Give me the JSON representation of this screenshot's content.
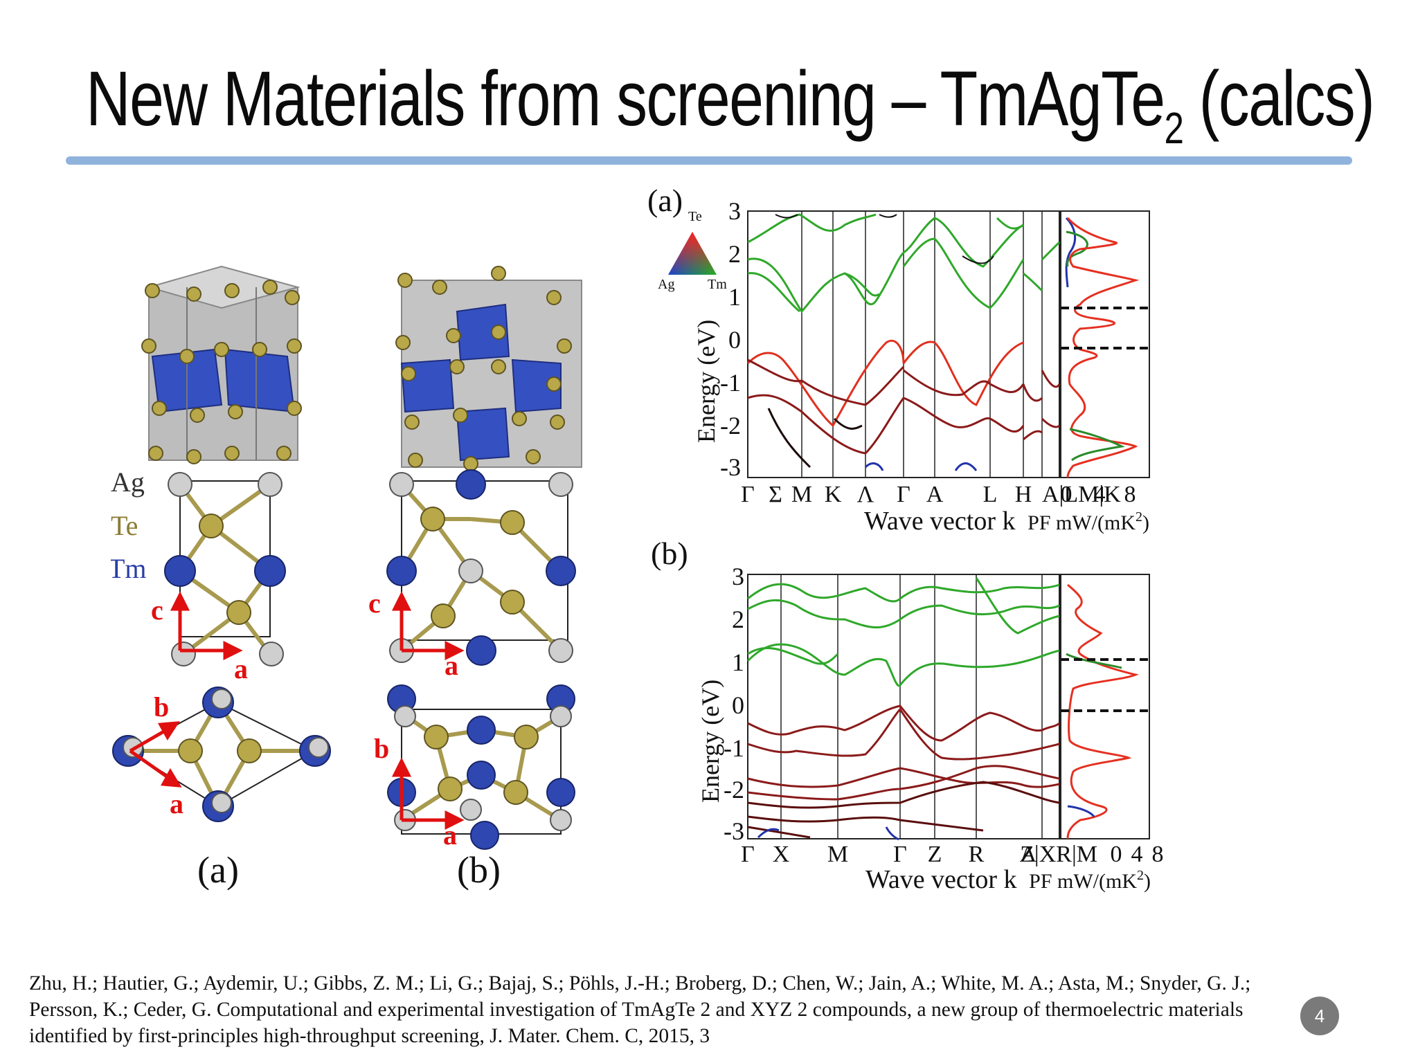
{
  "slide": {
    "title_main": "New Materials from screening – TmAgTe",
    "title_sub": "2",
    "title_end": " (calcs)",
    "page_number": "4"
  },
  "structure_figure": {
    "legend": [
      "Ag",
      "Te",
      "Tm"
    ],
    "axis_labels": {
      "c": "c",
      "a": "a",
      "b": "b"
    },
    "panel_labels": [
      "(a)",
      "(b)"
    ],
    "colors": {
      "Ag": "#c9c9c9",
      "Te": "#a89a4e",
      "Tm": "#2f47b0",
      "axis": "#e01010",
      "octahedron_gray": "#b9b9b9",
      "octahedron_blue": "#3a56c8"
    }
  },
  "band_figure": {
    "panels": [
      {
        "label": "(a)",
        "y_ticks": [
          "3",
          "2",
          "1",
          "0",
          "-1",
          "-2",
          "-3"
        ],
        "ylabel": "Energy (eV)",
        "xlabel": "Wave vector k",
        "k_labels": [
          "Γ",
          "Σ",
          "M",
          "K",
          "Λ",
          "Γ",
          "A",
          "L",
          "H",
          "A|LM|K"
        ],
        "pf_ticks": [
          "0",
          "4",
          "8"
        ],
        "pf_label_main": "PF mW/(mK",
        "pf_label_sup": "2",
        "pf_label_end": ")",
        "triangle_labels": [
          "Te",
          "Ag",
          "Tm"
        ]
      },
      {
        "label": "(b)",
        "y_ticks": [
          "3",
          "2",
          "1",
          "0",
          "-1",
          "-2",
          "-3"
        ],
        "ylabel": "Energy (eV)",
        "xlabel": "Wave vector k",
        "k_labels": [
          "Γ",
          "X",
          "M",
          "Γ",
          "Z",
          "R",
          "A",
          "Z|XR|M"
        ],
        "pf_ticks": [
          "0",
          "4",
          "8"
        ],
        "pf_label_main": "PF mW/(mK",
        "pf_label_sup": "2",
        "pf_label_end": ")"
      }
    ],
    "colors": {
      "conduction": "#2fa82a",
      "valence": "#8b1a1a",
      "valence_light": "#e0301e",
      "fermi_dash": "#111111",
      "pf_red": "#e53020",
      "pf_blue": "#2233aa",
      "pf_green": "#2a8a2a"
    }
  },
  "citation": "Zhu, H.; Hautier, G.; Aydemir, U.; Gibbs, Z. M.; Li, G.; Bajaj, S.; Pöhls, J.-H.; Broberg, D.; Chen, W.; Jain, A.; White, M. A.; Asta, M.; Snyder, G. J.; Persson, K.; Ceder, G. Computational and experimental investigation of TmAgTe 2 and XYZ 2 compounds, a new group of thermoelectric materials identified by first-principles high-throughput screening, J. Mater. Chem. C, 2015, 3"
}
